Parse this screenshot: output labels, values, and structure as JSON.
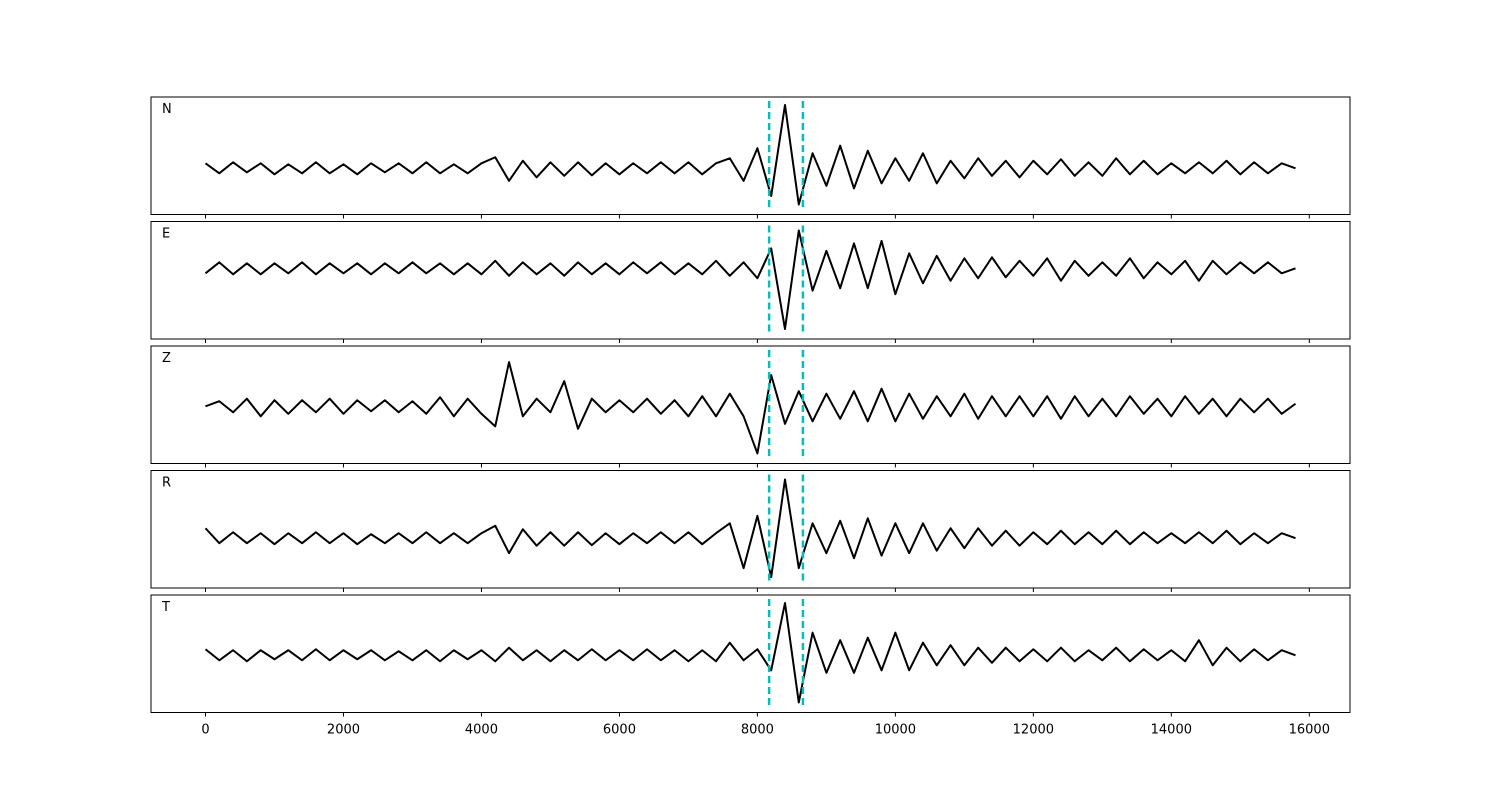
{
  "chart_data": {
    "type": "line",
    "subplots": true,
    "color": "#000000",
    "xlim": [
      -790,
      16590
    ],
    "xticks": [
      0,
      2000,
      4000,
      6000,
      8000,
      10000,
      12000,
      14000,
      16000
    ],
    "vlines": [
      8170,
      8660
    ],
    "vline_color": "#00bfbf",
    "x": [
      0,
      200,
      400,
      600,
      800,
      1000,
      1200,
      1400,
      1600,
      1800,
      2000,
      2200,
      2400,
      2600,
      2800,
      3000,
      3200,
      3400,
      3600,
      3800,
      4000,
      4200,
      4400,
      4600,
      4800,
      5000,
      5200,
      5400,
      5600,
      5800,
      6000,
      6200,
      6400,
      6600,
      6800,
      7000,
      7200,
      7400,
      7600,
      7800,
      8000,
      8200,
      8400,
      8600,
      8800,
      9000,
      9200,
      9400,
      9600,
      9800,
      10000,
      10200,
      10400,
      10600,
      10800,
      11000,
      11200,
      11400,
      11600,
      11800,
      12000,
      12200,
      12400,
      12600,
      12800,
      13000,
      13200,
      13400,
      13600,
      13800,
      14000,
      14200,
      14400,
      14600,
      14800,
      15000,
      15200,
      15400,
      15600,
      15800
    ],
    "series": [
      {
        "name": "N",
        "ylim": [
          -0.92,
          1.42
        ],
        "values": [
          0.1,
          -0.1,
          0.12,
          -0.08,
          0.1,
          -0.12,
          0.08,
          -0.1,
          0.12,
          -0.1,
          0.08,
          -0.12,
          0.1,
          -0.08,
          0.1,
          -0.1,
          0.12,
          -0.1,
          0.08,
          -0.1,
          0.1,
          0.22,
          -0.25,
          0.15,
          -0.18,
          0.12,
          -0.15,
          0.12,
          -0.14,
          0.1,
          -0.12,
          0.1,
          -0.1,
          0.12,
          -0.1,
          0.12,
          -0.12,
          0.1,
          0.2,
          -0.25,
          0.4,
          -0.55,
          1.26,
          -0.72,
          0.3,
          -0.35,
          0.45,
          -0.4,
          0.35,
          -0.3,
          0.2,
          -0.25,
          0.3,
          -0.3,
          0.15,
          -0.2,
          0.2,
          -0.15,
          0.15,
          -0.18,
          0.15,
          -0.12,
          0.18,
          -0.15,
          0.12,
          -0.15,
          0.2,
          -0.12,
          0.15,
          -0.12,
          0.1,
          -0.1,
          0.12,
          -0.1,
          0.15,
          -0.12,
          0.12,
          -0.1,
          0.1,
          0.0
        ]
      },
      {
        "name": "E",
        "ylim": [
          -1.42,
          0.94
        ],
        "values": [
          -0.1,
          0.12,
          -0.12,
          0.1,
          -0.12,
          0.1,
          -0.1,
          0.12,
          -0.12,
          0.1,
          -0.1,
          0.1,
          -0.12,
          0.1,
          -0.1,
          0.12,
          -0.1,
          0.1,
          -0.12,
          0.1,
          -0.12,
          0.15,
          -0.15,
          0.12,
          -0.12,
          0.1,
          -0.15,
          0.12,
          -0.12,
          0.1,
          -0.12,
          0.12,
          -0.1,
          0.12,
          -0.12,
          0.1,
          -0.12,
          0.15,
          -0.15,
          0.12,
          -0.2,
          0.4,
          -1.22,
          0.76,
          -0.45,
          0.35,
          -0.4,
          0.5,
          -0.4,
          0.55,
          -0.52,
          0.3,
          -0.3,
          0.25,
          -0.25,
          0.2,
          -0.2,
          0.22,
          -0.18,
          0.15,
          -0.15,
          0.2,
          -0.25,
          0.15,
          -0.15,
          0.12,
          -0.15,
          0.2,
          -0.2,
          0.12,
          -0.12,
          0.15,
          -0.25,
          0.15,
          -0.12,
          0.12,
          -0.1,
          0.12,
          -0.1,
          0.0
        ]
      },
      {
        "name": "Z",
        "ylim": [
          -1.14,
          1.2
        ],
        "values": [
          0.0,
          0.1,
          -0.12,
          0.15,
          -0.2,
          0.12,
          -0.15,
          0.12,
          -0.12,
          0.15,
          -0.15,
          0.12,
          -0.1,
          0.12,
          -0.12,
          0.1,
          -0.15,
          0.18,
          -0.2,
          0.15,
          -0.15,
          -0.4,
          0.88,
          -0.2,
          0.15,
          -0.12,
          0.5,
          -0.45,
          0.15,
          -0.12,
          0.12,
          -0.12,
          0.15,
          -0.15,
          0.12,
          -0.2,
          0.2,
          -0.2,
          0.25,
          -0.2,
          -0.94,
          0.62,
          -0.35,
          0.3,
          -0.3,
          0.25,
          -0.25,
          0.3,
          -0.3,
          0.35,
          -0.3,
          0.25,
          -0.25,
          0.2,
          -0.2,
          0.25,
          -0.25,
          0.2,
          -0.2,
          0.2,
          -0.2,
          0.2,
          -0.25,
          0.2,
          -0.2,
          0.15,
          -0.2,
          0.2,
          -0.15,
          0.15,
          -0.2,
          0.2,
          -0.15,
          0.15,
          -0.2,
          0.15,
          -0.12,
          0.15,
          -0.15,
          0.05
        ]
      },
      {
        "name": "R",
        "ylim": [
          -1.0,
          1.36
        ],
        "values": [
          0.2,
          -0.1,
          0.12,
          -0.1,
          0.1,
          -0.12,
          0.1,
          -0.1,
          0.12,
          -0.1,
          0.1,
          -0.12,
          0.08,
          -0.1,
          0.1,
          -0.1,
          0.12,
          -0.1,
          0.1,
          -0.1,
          0.1,
          0.25,
          -0.3,
          0.18,
          -0.15,
          0.12,
          -0.15,
          0.12,
          -0.14,
          0.1,
          -0.12,
          0.1,
          -0.1,
          0.12,
          -0.1,
          0.12,
          -0.12,
          0.1,
          0.3,
          -0.6,
          0.45,
          -0.78,
          1.18,
          -0.6,
          0.3,
          -0.3,
          0.35,
          -0.4,
          0.4,
          -0.35,
          0.3,
          -0.3,
          0.3,
          -0.25,
          0.2,
          -0.2,
          0.2,
          -0.15,
          0.15,
          -0.15,
          0.12,
          -0.12,
          0.15,
          -0.12,
          0.12,
          -0.12,
          0.15,
          -0.12,
          0.12,
          -0.1,
          0.1,
          -0.1,
          0.12,
          -0.1,
          0.15,
          -0.12,
          0.1,
          -0.1,
          0.1,
          0.0
        ]
      },
      {
        "name": "T",
        "ylim": [
          -1.14,
          1.2
        ],
        "values": [
          0.12,
          -0.1,
          0.1,
          -0.12,
          0.1,
          -0.08,
          0.1,
          -0.1,
          0.12,
          -0.1,
          0.1,
          -0.08,
          0.1,
          -0.1,
          0.08,
          -0.1,
          0.1,
          -0.12,
          0.1,
          -0.08,
          0.1,
          -0.12,
          0.15,
          -0.1,
          0.1,
          -0.12,
          0.1,
          -0.1,
          0.12,
          -0.1,
          0.1,
          -0.1,
          0.12,
          -0.1,
          0.1,
          -0.12,
          0.1,
          -0.12,
          0.25,
          -0.1,
          0.12,
          -0.3,
          1.04,
          -0.94,
          0.45,
          -0.35,
          0.3,
          -0.35,
          0.35,
          -0.3,
          0.45,
          -0.3,
          0.25,
          -0.2,
          0.2,
          -0.2,
          0.15,
          -0.15,
          0.15,
          -0.12,
          0.12,
          -0.12,
          0.15,
          -0.12,
          0.1,
          -0.1,
          0.15,
          -0.12,
          0.12,
          -0.1,
          0.1,
          -0.12,
          0.3,
          -0.2,
          0.15,
          -0.12,
          0.12,
          -0.1,
          0.1,
          0.0
        ]
      }
    ]
  }
}
